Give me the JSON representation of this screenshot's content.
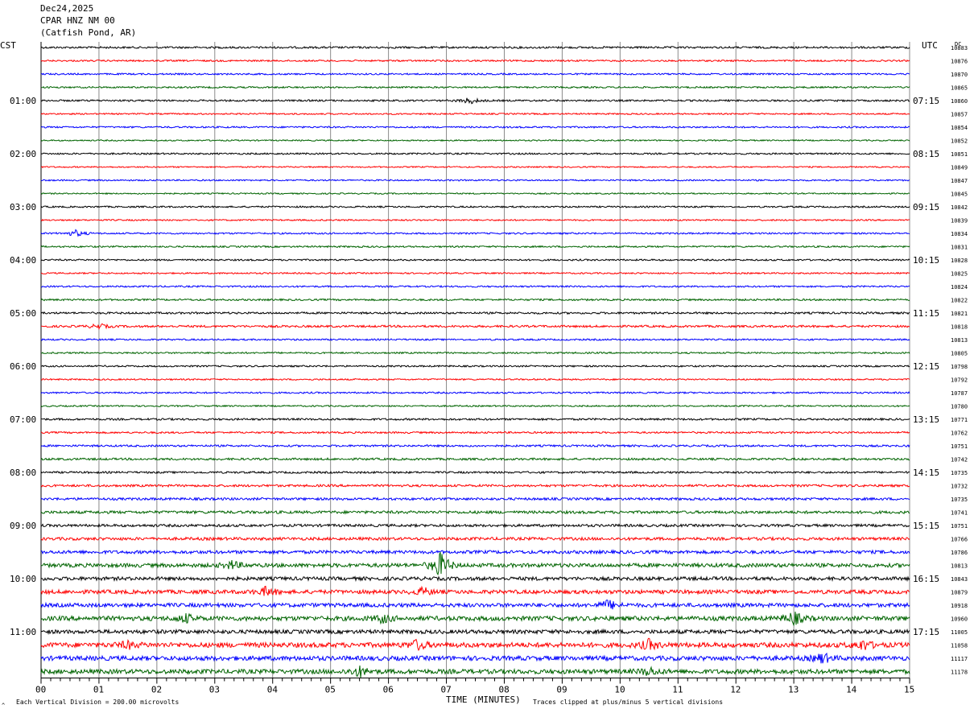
{
  "header": {
    "date": "Dec24,2025",
    "station": "CPAR HNZ NM 00",
    "location": "(Catfish Pond, AR)"
  },
  "left_zone": "CST",
  "right_zone": "UTC",
  "dc_label": "DC",
  "footer": {
    "mark": "^",
    "division_note": "Each Vertical Division =  200.00 microvolts",
    "clip_note": "Traces clipped at plus/minus 5 vertical divisions"
  },
  "chart_data": {
    "type": "line",
    "title": "",
    "xlabel": "TIME (MINUTES)",
    "ylabel": "",
    "xlim": [
      0,
      15
    ],
    "x_ticks": [
      "00",
      "01",
      "02",
      "03",
      "04",
      "05",
      "06",
      "07",
      "08",
      "09",
      "10",
      "11",
      "12",
      "13",
      "14",
      "15"
    ],
    "grid": true,
    "trace_colors": [
      "#000000",
      "#ff0000",
      "#0000ff",
      "#006400"
    ],
    "left_hour_labels": [
      "01:00",
      "02:00",
      "03:00",
      "04:00",
      "05:00",
      "06:00",
      "07:00",
      "08:00",
      "09:00",
      "10:00",
      "11:00"
    ],
    "right_hour_labels": [
      "07:15",
      "08:15",
      "09:15",
      "10:15",
      "11:15",
      "12:15",
      "13:15",
      "14:15",
      "15:15",
      "16:15",
      "17:15"
    ],
    "hour_label_first_row": 4,
    "rows_per_hour": 4,
    "dc_offsets": [
      10883,
      10876,
      10870,
      10865,
      10860,
      10857,
      10854,
      10852,
      10851,
      10849,
      10847,
      10845,
      10842,
      10839,
      10834,
      10831,
      10828,
      10825,
      10824,
      10822,
      10821,
      10818,
      10813,
      10805,
      10798,
      10792,
      10787,
      10780,
      10771,
      10762,
      10751,
      10742,
      10735,
      10732,
      10735,
      10741,
      10751,
      10766,
      10786,
      10813,
      10843,
      10879,
      10918,
      10960,
      11005,
      11058,
      11117,
      11178
    ],
    "noise_level": [
      1.2,
      1.0,
      1.0,
      1.0,
      1.1,
      0.9,
      1.0,
      0.8,
      1.0,
      0.8,
      0.9,
      0.8,
      1.0,
      0.9,
      1.0,
      1.0,
      1.0,
      0.9,
      1.0,
      1.1,
      1.2,
      1.3,
      1.0,
      1.0,
      1.0,
      0.9,
      1.0,
      0.9,
      1.2,
      1.1,
      1.2,
      1.3,
      1.2,
      1.4,
      1.5,
      1.7,
      1.6,
      1.8,
      2.0,
      2.4,
      2.2,
      2.4,
      2.4,
      2.8,
      2.4,
      3.0,
      2.8,
      2.8
    ],
    "events": [
      {
        "row": 4,
        "minute": 7.4,
        "amplitude": 4
      },
      {
        "row": 14,
        "minute": 0.6,
        "amplitude": 4
      },
      {
        "row": 21,
        "minute": 1.0,
        "amplitude": 3
      },
      {
        "row": 39,
        "minute": 3.3,
        "amplitude": 5
      },
      {
        "row": 39,
        "minute": 6.9,
        "amplitude": 16
      },
      {
        "row": 41,
        "minute": 3.9,
        "amplitude": 6
      },
      {
        "row": 41,
        "minute": 6.6,
        "amplitude": 5
      },
      {
        "row": 42,
        "minute": 9.8,
        "amplitude": 6
      },
      {
        "row": 43,
        "minute": 2.5,
        "amplitude": 5
      },
      {
        "row": 43,
        "minute": 5.9,
        "amplitude": 5
      },
      {
        "row": 43,
        "minute": 13.0,
        "amplitude": 8
      },
      {
        "row": 45,
        "minute": 1.5,
        "amplitude": 4
      },
      {
        "row": 45,
        "minute": 6.5,
        "amplitude": 6
      },
      {
        "row": 45,
        "minute": 10.5,
        "amplitude": 6
      },
      {
        "row": 45,
        "minute": 14.2,
        "amplitude": 6
      },
      {
        "row": 46,
        "minute": 13.5,
        "amplitude": 6
      },
      {
        "row": 47,
        "minute": 5.5,
        "amplitude": 6
      },
      {
        "row": 47,
        "minute": 10.5,
        "amplitude": 5
      }
    ]
  }
}
